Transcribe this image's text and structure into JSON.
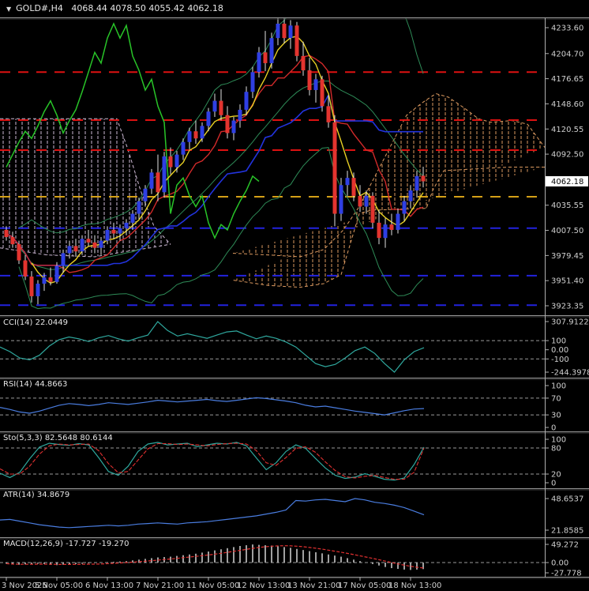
{
  "window": {
    "title": "GOLD#,H4   4068.44 4078.50 4055.42 4062.18",
    "dropdown_icon": "symbol-dropdown"
  },
  "colors": {
    "background": "#000000",
    "bull_candle": "#2f3fe3",
    "bear_candle": "#e3342f",
    "wick": "#e2e2e2",
    "bollinger": "#2E8B57",
    "tenkan": "#d22a2a",
    "kijun": "#2233dd",
    "chikou": "#28c428",
    "ma_fast": "#e8d024",
    "cloud_left": "#cdb9d4",
    "cloud_right": "#dd9a60",
    "level_red": "#dd1111",
    "level_gold": "#d4a017",
    "level_blue": "#2222dd",
    "axis_text": "#cfcfcf",
    "price_tag_bg": "#ffffff",
    "price_tag_text": "#000000",
    "indicator_teal": "#2fa89e",
    "indicator_blue": "#4a7de0",
    "indicator_red": "#e03030",
    "histogram_silver": "#c8c8c8",
    "level_dash_gray": "#9a9a9a"
  },
  "chart_data": {
    "type": "candlestick+indicators",
    "symbol": "GOLD#",
    "timeframe": "H4",
    "current_bar": {
      "open": 4068.44,
      "high": 4078.5,
      "low": 4055.42,
      "close": 4062.18
    },
    "price_axis": {
      "labels": [
        {
          "text": "4233.60",
          "value": 4233.6
        },
        {
          "text": "4204.70",
          "value": 4204.7
        },
        {
          "text": "4176.65",
          "value": 4176.65
        },
        {
          "text": "4148.60",
          "value": 4148.6
        },
        {
          "text": "4120.55",
          "value": 4120.55
        },
        {
          "text": "4092.50",
          "value": 4092.5
        },
        {
          "text": "4035.55",
          "value": 4035.55
        },
        {
          "text": "4007.50",
          "value": 4007.5
        },
        {
          "text": "3979.45",
          "value": 3979.45
        },
        {
          "text": "3951.40",
          "value": 3951.4
        },
        {
          "text": "3923.35",
          "value": 3923.35
        }
      ],
      "current": {
        "text": "4062.18",
        "value": 4062.18
      }
    },
    "time_axis": [
      "3 Nov 2025",
      "5 Nov 05:00",
      "6 Nov 13:00",
      "7 Nov 21:00",
      "11 Nov 05:00",
      "12 Nov 13:00",
      "13 Nov 21:00",
      "17 Nov 05:00",
      "18 Nov 13:00"
    ],
    "candles": [
      [
        4008,
        4012,
        3996,
        4000
      ],
      [
        4000,
        4006,
        3988,
        3992
      ],
      [
        3992,
        3996,
        3970,
        3974
      ],
      [
        3974,
        3980,
        3952,
        3956
      ],
      [
        3956,
        3962,
        3927,
        3934
      ],
      [
        3934,
        3952,
        3925,
        3948
      ],
      [
        3948,
        3960,
        3940,
        3955
      ],
      [
        3955,
        3966,
        3946,
        3950
      ],
      [
        3950,
        3972,
        3948,
        3968
      ],
      [
        3968,
        3986,
        3960,
        3982
      ],
      [
        3982,
        3996,
        3976,
        3990
      ],
      [
        3990,
        3998,
        3978,
        3984
      ],
      [
        3984,
        4002,
        3980,
        3998
      ],
      [
        3998,
        4008,
        3990,
        3994
      ],
      [
        3994,
        4002,
        3982,
        3988
      ],
      [
        3988,
        4000,
        3980,
        3996
      ],
      [
        3996,
        4012,
        3992,
        4008
      ],
      [
        4008,
        4016,
        3998,
        4004
      ],
      [
        4004,
        4014,
        3996,
        4010
      ],
      [
        4010,
        4020,
        4002,
        4016
      ],
      [
        4016,
        4030,
        4008,
        4026
      ],
      [
        4026,
        4044,
        4020,
        4040
      ],
      [
        4040,
        4058,
        4034,
        4054
      ],
      [
        4054,
        4076,
        4048,
        4072
      ],
      [
        4072,
        4092,
        4040,
        4050
      ],
      [
        4050,
        4095,
        4044,
        4090
      ],
      [
        4090,
        4100,
        4070,
        4078
      ],
      [
        4078,
        4096,
        4072,
        4092
      ],
      [
        4092,
        4110,
        4086,
        4106
      ],
      [
        4106,
        4122,
        4098,
        4118
      ],
      [
        4118,
        4130,
        4104,
        4110
      ],
      [
        4110,
        4128,
        4106,
        4124
      ],
      [
        4124,
        4144,
        4118,
        4140
      ],
      [
        4140,
        4160,
        4134,
        4152
      ],
      [
        4152,
        4165,
        4130,
        4136
      ],
      [
        4136,
        4146,
        4110,
        4116
      ],
      [
        4116,
        4134,
        4108,
        4130
      ],
      [
        4130,
        4148,
        4122,
        4142
      ],
      [
        4142,
        4168,
        4136,
        4162
      ],
      [
        4162,
        4190,
        4155,
        4184
      ],
      [
        4184,
        4212,
        4178,
        4206
      ],
      [
        4206,
        4230,
        4185,
        4194
      ],
      [
        4194,
        4228,
        4188,
        4222
      ],
      [
        4222,
        4247,
        4214,
        4238
      ],
      [
        4238,
        4246,
        4216,
        4222
      ],
      [
        4222,
        4242,
        4210,
        4236
      ],
      [
        4236,
        4240,
        4196,
        4202
      ],
      [
        4202,
        4218,
        4180,
        4186
      ],
      [
        4186,
        4200,
        4158,
        4164
      ],
      [
        4164,
        4182,
        4150,
        4176
      ],
      [
        4176,
        4180,
        4140,
        4146
      ],
      [
        4146,
        4158,
        4122,
        4128
      ],
      [
        4128,
        4136,
        4012,
        4026
      ],
      [
        4026,
        4066,
        4018,
        4058
      ],
      [
        4058,
        4074,
        4046,
        4066
      ],
      [
        4066,
        4072,
        4040,
        4046
      ],
      [
        4046,
        4058,
        4028,
        4034
      ],
      [
        4034,
        4052,
        4026,
        4046
      ],
      [
        4046,
        4050,
        4010,
        4016
      ],
      [
        4016,
        4030,
        3992,
        3999
      ],
      [
        3999,
        4021,
        3988,
        4014
      ],
      [
        4014,
        4026,
        4002,
        4008
      ],
      [
        4008,
        4032,
        4004,
        4026
      ],
      [
        4026,
        4046,
        4018,
        4040
      ],
      [
        4040,
        4058,
        4032,
        4052
      ],
      [
        4052,
        4074,
        4044,
        4068
      ],
      [
        4068.44,
        4078.5,
        4055.42,
        4062.18
      ]
    ],
    "levels": [
      {
        "price": 4184.0,
        "color": "#dd1111"
      },
      {
        "price": 4130.5,
        "color": "#dd1111"
      },
      {
        "price": 4097.0,
        "color": "#dd1111"
      },
      {
        "price": 4045.0,
        "color": "#d4a017"
      },
      {
        "price": 4010.0,
        "color": "#2222dd"
      },
      {
        "price": 3957.0,
        "color": "#2222dd"
      },
      {
        "price": 3924.0,
        "color": "#2222dd"
      }
    ],
    "ichimoku_cloud": {
      "left": {
        "top": [
          [
            0,
            4132
          ],
          [
            148,
            4132
          ],
          [
            162,
            4098
          ],
          [
            178,
            4052
          ],
          [
            195,
            4012
          ],
          [
            216,
            3992
          ]
        ],
        "bottom": [
          [
            0,
            3988
          ],
          [
            60,
            3980
          ],
          [
            120,
            3978
          ],
          [
            160,
            3984
          ],
          [
            190,
            3988
          ],
          [
            216,
            3992
          ]
        ]
      },
      "right": {
        "top": [
          [
            295,
            3982
          ],
          [
            340,
            3980
          ],
          [
            380,
            3978
          ],
          [
            410,
            3986
          ],
          [
            435,
            4008
          ],
          [
            455,
            4034
          ],
          [
            475,
            4068
          ],
          [
            495,
            4102
          ],
          [
            515,
            4136
          ],
          [
            535,
            4150
          ],
          [
            552,
            4160
          ],
          [
            568,
            4156
          ],
          [
            588,
            4144
          ],
          [
            606,
            4132
          ],
          [
            622,
            4128
          ],
          [
            648,
            4130
          ],
          [
            668,
            4126
          ],
          [
            690,
            4100
          ]
        ],
        "bottom": [
          [
            690,
            4078
          ],
          [
            645,
            4078
          ],
          [
            600,
            4076
          ],
          [
            562,
            4074
          ],
          [
            548,
            4052
          ],
          [
            540,
            4032
          ],
          [
            470,
            4030
          ],
          [
            455,
            4026
          ],
          [
            432,
            3958
          ],
          [
            410,
            3948
          ],
          [
            380,
            3944
          ],
          [
            340,
            3946
          ],
          [
            295,
            3952
          ]
        ]
      }
    },
    "indicators": [
      {
        "name": "CCI",
        "label": "CCI(14) 22.0449",
        "last": 22.0449,
        "axis": [
          {
            "text": "307.9122",
            "value": 307.9122
          },
          {
            "text": "100",
            "value": 100
          },
          {
            "text": "0.00",
            "value": 0
          },
          {
            "text": "-100",
            "value": -100
          },
          {
            "text": "-244.3978",
            "value": -244.3978
          }
        ],
        "levels": [
          100,
          -100
        ],
        "values": [
          30,
          -20,
          -90,
          -110,
          -60,
          40,
          110,
          140,
          120,
          90,
          130,
          155,
          120,
          95,
          130,
          160,
          308,
          210,
          150,
          175,
          150,
          125,
          160,
          195,
          205,
          160,
          120,
          150,
          125,
          85,
          30,
          -60,
          -150,
          -185,
          -160,
          -90,
          -10,
          30,
          -40,
          -150,
          -244,
          -110,
          -20,
          22
        ]
      },
      {
        "name": "RSI",
        "label": "RSI(14) 44.8663",
        "last": 44.8663,
        "axis": [
          {
            "text": "100",
            "value": 100
          },
          {
            "text": "70",
            "value": 70
          },
          {
            "text": "30",
            "value": 30
          },
          {
            "text": "0",
            "value": 0
          }
        ],
        "levels": [
          70,
          30
        ],
        "values": [
          48,
          43,
          37,
          34,
          39,
          46,
          53,
          57,
          55,
          52,
          55,
          59,
          57,
          55,
          58,
          61,
          65,
          63,
          61,
          63,
          65,
          67,
          64,
          62,
          65,
          68,
          71,
          69,
          66,
          63,
          59,
          53,
          49,
          51,
          47,
          43,
          39,
          36,
          33,
          30,
          35,
          40,
          44,
          45
        ]
      },
      {
        "name": "Stochastic",
        "label": "Sto(5,3,3) 82.5648 80.6144",
        "last_main": 82.5648,
        "last_signal": 80.6144,
        "axis": [
          {
            "text": "100",
            "value": 100
          },
          {
            "text": "80",
            "value": 80
          },
          {
            "text": "20",
            "value": 20
          },
          {
            "text": "0",
            "value": 0
          }
        ],
        "levels": [
          80,
          20
        ],
        "main": [
          22,
          12,
          24,
          55,
          82,
          91,
          88,
          86,
          90,
          87,
          58,
          26,
          17,
          38,
          72,
          89,
          93,
          87,
          89,
          91,
          83,
          87,
          91,
          89,
          93,
          85,
          57,
          30,
          46,
          72,
          87,
          79,
          56,
          34,
          17,
          10,
          13,
          21,
          15,
          8,
          6,
          11,
          42,
          82
        ],
        "signal": [
          32,
          20,
          20,
          38,
          66,
          85,
          89,
          87,
          88,
          89,
          74,
          44,
          23,
          26,
          52,
          78,
          90,
          90,
          88,
          89,
          87,
          85,
          88,
          90,
          91,
          89,
          74,
          46,
          40,
          58,
          79,
          83,
          70,
          48,
          28,
          14,
          11,
          15,
          17,
          12,
          8,
          8,
          24,
          80
        ]
      },
      {
        "name": "ATR",
        "label": "ATR(14) 34.8679",
        "last": 34.8679,
        "axis": [
          {
            "text": "48.6537",
            "value": 48.6537
          },
          {
            "text": "21.8585",
            "value": 21.8585
          }
        ],
        "levels": [],
        "values": [
          30.5,
          31,
          29.5,
          28,
          26.5,
          25.5,
          24.5,
          24,
          24.5,
          25,
          25.5,
          26,
          25.5,
          26,
          27,
          27.5,
          28,
          27.5,
          27,
          28,
          28.5,
          29,
          30,
          31,
          32,
          33,
          34,
          35.5,
          37,
          39,
          47,
          46.5,
          47.5,
          48,
          47,
          46,
          48.65,
          47.5,
          45.5,
          44.5,
          43,
          41,
          38,
          34.87
        ]
      },
      {
        "name": "MACD",
        "label": "MACD(12,26,9) -17.727 -19.270",
        "last_macd": -17.727,
        "last_signal": -19.27,
        "axis": [
          {
            "text": "49.272",
            "value": 49.272
          },
          {
            "text": "0.00",
            "value": 0
          },
          {
            "text": "-27.778",
            "value": -27.778
          }
        ],
        "levels": [
          0
        ],
        "histogram": [
          -3,
          -5,
          -6,
          -5,
          -4,
          -3,
          -4,
          -6,
          -7,
          -6,
          -5,
          -4,
          -3,
          -2,
          -1,
          0,
          1,
          2,
          3,
          4,
          6,
          8,
          10,
          12,
          14,
          15,
          16,
          18,
          20,
          22,
          24,
          27,
          30,
          33,
          36,
          39,
          42,
          45,
          47,
          49,
          48,
          47,
          46,
          44,
          42,
          40,
          37,
          34,
          31,
          28,
          25,
          22,
          19,
          16,
          12,
          8,
          4,
          0,
          -4,
          -8,
          -12,
          -15,
          -17,
          -19,
          -20,
          -19,
          -17.7
        ]
      }
    ]
  }
}
